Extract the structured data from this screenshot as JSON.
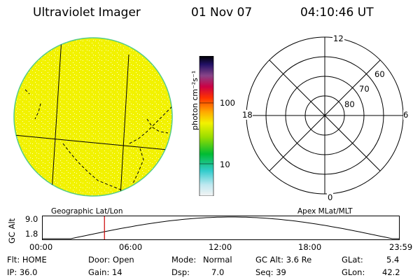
{
  "header": {
    "instrument": "Ultraviolet Imager",
    "date": "01 Nov 07",
    "time": "04:10:46 UT"
  },
  "colorbar": {
    "unit_label": "photon cm⁻²s⁻¹",
    "ticks": [
      "100",
      "10"
    ]
  },
  "polar": {
    "mlt_labels": {
      "top": "12",
      "right": "6",
      "bottom": "0",
      "left": "18"
    },
    "lat_labels": [
      "60",
      "70",
      "80"
    ]
  },
  "captions": {
    "left": "Geographic Lat/Lon",
    "right": "Apex MLat/MLT"
  },
  "timeline": {
    "ylabel": "GC Alt",
    "y_ticks": [
      "9.0",
      "1.8"
    ],
    "x_ticks": [
      "00:00",
      "06:00",
      "12:00",
      "18:00",
      "23:59"
    ],
    "marker_fraction": 0.174
  },
  "footer": {
    "flt": "Flt: HOME",
    "door": "Door: Open",
    "mode_label": "Mode:",
    "mode_value": "Normal",
    "gc_alt": "GC Alt: 3.6 Re",
    "glat_label": "GLat:",
    "glat_value": "5.4",
    "ip": "IP: 36.0",
    "gain": "Gain: 14",
    "dsp_label": "Dsp:",
    "dsp_value": "7.0",
    "seq": "Seq: 39",
    "glon_label": "GLon:",
    "glon_value": "42.2"
  },
  "colors": {
    "disk_fill": "#f2f200",
    "disk_rim": "#55cc88",
    "marker": "#cc0000"
  }
}
